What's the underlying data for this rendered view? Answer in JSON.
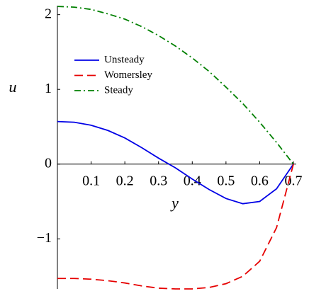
{
  "chart_data": {
    "type": "line",
    "xlabel": "y",
    "ylabel": "u",
    "x": [
      0,
      0.05,
      0.1,
      0.15,
      0.2,
      0.25,
      0.3,
      0.35,
      0.4,
      0.45,
      0.5,
      0.55,
      0.6,
      0.65,
      0.7
    ],
    "series": [
      {
        "name": "Unsteady",
        "color": "#0000e6",
        "style": "solid",
        "values": [
          0.57,
          0.56,
          0.52,
          0.45,
          0.35,
          0.22,
          0.08,
          -0.05,
          -0.2,
          -0.34,
          -0.46,
          -0.53,
          -0.5,
          -0.33,
          0
        ]
      },
      {
        "name": "Womersley",
        "color": "#e60000",
        "style": "dashed",
        "values": [
          -1.53,
          -1.53,
          -1.54,
          -1.56,
          -1.59,
          -1.63,
          -1.66,
          -1.67,
          -1.67,
          -1.65,
          -1.6,
          -1.5,
          -1.3,
          -0.85,
          0
        ]
      },
      {
        "name": "Steady",
        "color": "#008000",
        "style": "dashdot",
        "values": [
          2.11,
          2.1,
          2.07,
          2.01,
          1.94,
          1.84,
          1.72,
          1.58,
          1.42,
          1.24,
          1.03,
          0.81,
          0.56,
          0.29,
          0
        ]
      }
    ],
    "xlim": [
      0,
      0.7
    ],
    "xticks": [
      0.1,
      0.2,
      0.3,
      0.4,
      0.5,
      0.6,
      0.7
    ],
    "ylim": [
      -1.67,
      2.12
    ],
    "yticks": [
      {
        "value": -1,
        "label": "−1"
      },
      0,
      1,
      2
    ],
    "legend": "upper left"
  }
}
